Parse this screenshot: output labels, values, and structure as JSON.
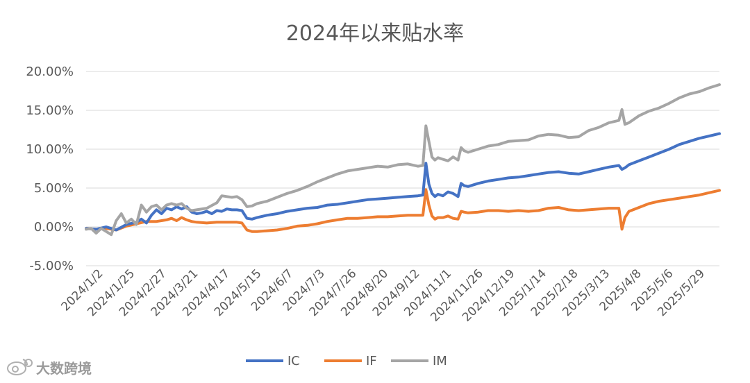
{
  "chart_data": {
    "type": "line",
    "title": "2024年以来贴水率",
    "xlabel": "",
    "ylabel": "",
    "ylim": [
      -5,
      20
    ],
    "y_ticks": [
      {
        "value": 20,
        "label": "20.00%"
      },
      {
        "value": 15,
        "label": "15.00%"
      },
      {
        "value": 10,
        "label": "10.00%"
      },
      {
        "value": 5,
        "label": "5.00%"
      },
      {
        "value": 0,
        "label": "0.00%"
      },
      {
        "value": -5,
        "label": "-5.00%"
      }
    ],
    "x_tick_labels": [
      "2024/1/2",
      "2024/1/25",
      "2024/2/27",
      "2024/3/21",
      "2024/4/17",
      "2024/5/15",
      "2024/6/7",
      "2024/7/3",
      "2024/7/26",
      "2024/8/20",
      "2024/9/12",
      "2024/11/1",
      "2024/11/26",
      "2024/12/19",
      "2025/1/14",
      "2025/2/18",
      "2025/3/13",
      "2025/4/8",
      "2025/5/6",
      "2025/5/29"
    ],
    "grid": "horizontal",
    "legend": "bottom",
    "series": [
      {
        "name": "IC",
        "color": "#4472C4",
        "points": [
          [
            0,
            -0.2
          ],
          [
            2,
            -0.3
          ],
          [
            4,
            0.0
          ],
          [
            6,
            -0.4
          ],
          [
            8,
            0.3
          ],
          [
            10,
            0.6
          ],
          [
            11,
            1.0
          ],
          [
            12,
            0.5
          ],
          [
            13,
            1.5
          ],
          [
            14,
            2.2
          ],
          [
            15,
            1.7
          ],
          [
            16,
            2.4
          ],
          [
            17,
            2.2
          ],
          [
            18,
            2.6
          ],
          [
            19,
            2.3
          ],
          [
            20,
            2.6
          ],
          [
            21,
            1.9
          ],
          [
            22,
            1.7
          ],
          [
            23,
            1.8
          ],
          [
            24,
            2.0
          ],
          [
            25,
            1.7
          ],
          [
            26,
            2.1
          ],
          [
            27,
            2.0
          ],
          [
            28,
            2.3
          ],
          [
            29,
            2.2
          ],
          [
            30,
            2.2
          ],
          [
            31,
            2.1
          ],
          [
            32,
            1.1
          ],
          [
            33,
            1.0
          ],
          [
            34,
            1.2
          ],
          [
            36,
            1.5
          ],
          [
            38,
            1.7
          ],
          [
            40,
            2.0
          ],
          [
            42,
            2.2
          ],
          [
            44,
            2.4
          ],
          [
            46,
            2.5
          ],
          [
            48,
            2.8
          ],
          [
            50,
            2.9
          ],
          [
            52,
            3.1
          ],
          [
            54,
            3.3
          ],
          [
            56,
            3.5
          ],
          [
            58,
            3.6
          ],
          [
            60,
            3.7
          ],
          [
            62,
            3.8
          ],
          [
            64,
            3.9
          ],
          [
            66,
            4.0
          ],
          [
            67,
            4.1
          ],
          [
            67.6,
            8.2
          ],
          [
            68.2,
            5.5
          ],
          [
            68.8,
            4.3
          ],
          [
            69.4,
            3.9
          ],
          [
            70,
            4.2
          ],
          [
            71,
            4.0
          ],
          [
            72,
            4.5
          ],
          [
            73,
            4.3
          ],
          [
            74,
            3.9
          ],
          [
            74.6,
            5.6
          ],
          [
            75.2,
            5.3
          ],
          [
            76,
            5.2
          ],
          [
            78,
            5.6
          ],
          [
            80,
            5.9
          ],
          [
            82,
            6.1
          ],
          [
            84,
            6.3
          ],
          [
            86,
            6.4
          ],
          [
            88,
            6.6
          ],
          [
            90,
            6.8
          ],
          [
            92,
            7.0
          ],
          [
            94,
            7.1
          ],
          [
            96,
            6.9
          ],
          [
            98,
            6.8
          ],
          [
            100,
            7.1
          ],
          [
            102,
            7.4
          ],
          [
            104,
            7.7
          ],
          [
            106,
            7.9
          ],
          [
            106.6,
            7.4
          ],
          [
            107.2,
            7.6
          ],
          [
            108,
            8.0
          ],
          [
            110,
            8.5
          ],
          [
            112,
            9.0
          ],
          [
            114,
            9.5
          ],
          [
            116,
            10.0
          ],
          [
            118,
            10.6
          ],
          [
            120,
            11.0
          ],
          [
            122,
            11.4
          ],
          [
            124,
            11.7
          ],
          [
            126,
            12.0
          ]
        ]
      },
      {
        "name": "IF",
        "color": "#ED7D31",
        "points": [
          [
            0,
            -0.2
          ],
          [
            2,
            -0.3
          ],
          [
            4,
            -0.2
          ],
          [
            6,
            -0.4
          ],
          [
            8,
            0.1
          ],
          [
            10,
            0.4
          ],
          [
            12,
            0.7
          ],
          [
            14,
            0.7
          ],
          [
            16,
            0.9
          ],
          [
            17,
            1.1
          ],
          [
            18,
            0.8
          ],
          [
            19,
            1.2
          ],
          [
            20,
            0.9
          ],
          [
            21,
            0.7
          ],
          [
            22,
            0.6
          ],
          [
            24,
            0.5
          ],
          [
            26,
            0.6
          ],
          [
            28,
            0.6
          ],
          [
            30,
            0.6
          ],
          [
            31,
            0.5
          ],
          [
            32,
            -0.4
          ],
          [
            33,
            -0.6
          ],
          [
            34,
            -0.6
          ],
          [
            36,
            -0.5
          ],
          [
            38,
            -0.4
          ],
          [
            40,
            -0.2
          ],
          [
            42,
            0.1
          ],
          [
            44,
            0.2
          ],
          [
            46,
            0.4
          ],
          [
            48,
            0.7
          ],
          [
            50,
            0.9
          ],
          [
            52,
            1.1
          ],
          [
            54,
            1.1
          ],
          [
            56,
            1.2
          ],
          [
            58,
            1.3
          ],
          [
            60,
            1.3
          ],
          [
            62,
            1.4
          ],
          [
            64,
            1.5
          ],
          [
            66,
            1.5
          ],
          [
            67,
            1.5
          ],
          [
            67.6,
            4.8
          ],
          [
            68.2,
            2.8
          ],
          [
            68.8,
            1.4
          ],
          [
            69.4,
            1.0
          ],
          [
            70,
            1.2
          ],
          [
            71,
            1.2
          ],
          [
            72,
            1.4
          ],
          [
            73,
            1.1
          ],
          [
            74,
            1.0
          ],
          [
            74.6,
            2.0
          ],
          [
            75.2,
            1.9
          ],
          [
            76,
            1.8
          ],
          [
            78,
            1.9
          ],
          [
            80,
            2.1
          ],
          [
            82,
            2.1
          ],
          [
            84,
            2.0
          ],
          [
            86,
            2.1
          ],
          [
            88,
            2.0
          ],
          [
            90,
            2.1
          ],
          [
            92,
            2.4
          ],
          [
            94,
            2.5
          ],
          [
            96,
            2.2
          ],
          [
            98,
            2.1
          ],
          [
            100,
            2.2
          ],
          [
            102,
            2.3
          ],
          [
            104,
            2.4
          ],
          [
            106,
            2.4
          ],
          [
            106.6,
            -0.3
          ],
          [
            107.2,
            1.2
          ],
          [
            108,
            2.0
          ],
          [
            110,
            2.5
          ],
          [
            112,
            3.0
          ],
          [
            114,
            3.3
          ],
          [
            116,
            3.5
          ],
          [
            118,
            3.7
          ],
          [
            120,
            3.9
          ],
          [
            122,
            4.1
          ],
          [
            124,
            4.4
          ],
          [
            126,
            4.7
          ]
        ]
      },
      {
        "name": "IM",
        "color": "#A5A5A5",
        "points": [
          [
            0,
            -0.3
          ],
          [
            1,
            -0.2
          ],
          [
            2,
            -0.8
          ],
          [
            3,
            -0.2
          ],
          [
            4,
            -0.6
          ],
          [
            5,
            -1.0
          ],
          [
            6,
            0.8
          ],
          [
            7,
            1.7
          ],
          [
            8,
            0.5
          ],
          [
            9,
            1.0
          ],
          [
            10,
            0.3
          ],
          [
            11,
            2.8
          ],
          [
            12,
            1.9
          ],
          [
            13,
            2.6
          ],
          [
            14,
            2.8
          ],
          [
            15,
            2.2
          ],
          [
            16,
            2.8
          ],
          [
            17,
            3.0
          ],
          [
            18,
            2.8
          ],
          [
            19,
            3.0
          ],
          [
            20,
            2.4
          ],
          [
            21,
            2.1
          ],
          [
            22,
            2.2
          ],
          [
            24,
            2.4
          ],
          [
            26,
            3.1
          ],
          [
            27,
            4.0
          ],
          [
            28,
            3.9
          ],
          [
            29,
            3.8
          ],
          [
            30,
            3.9
          ],
          [
            31,
            3.5
          ],
          [
            32,
            2.6
          ],
          [
            33,
            2.7
          ],
          [
            34,
            3.0
          ],
          [
            36,
            3.3
          ],
          [
            38,
            3.8
          ],
          [
            40,
            4.3
          ],
          [
            42,
            4.7
          ],
          [
            44,
            5.2
          ],
          [
            46,
            5.8
          ],
          [
            48,
            6.3
          ],
          [
            50,
            6.8
          ],
          [
            52,
            7.2
          ],
          [
            54,
            7.4
          ],
          [
            56,
            7.6
          ],
          [
            58,
            7.8
          ],
          [
            60,
            7.7
          ],
          [
            62,
            8.0
          ],
          [
            64,
            8.1
          ],
          [
            66,
            7.8
          ],
          [
            67,
            7.9
          ],
          [
            67.6,
            13.0
          ],
          [
            68.2,
            11.0
          ],
          [
            68.8,
            9.0
          ],
          [
            69.4,
            8.6
          ],
          [
            70,
            8.9
          ],
          [
            71,
            8.7
          ],
          [
            72,
            8.5
          ],
          [
            73,
            9.0
          ],
          [
            74,
            8.6
          ],
          [
            74.6,
            10.2
          ],
          [
            75.2,
            9.8
          ],
          [
            76,
            9.6
          ],
          [
            78,
            10.0
          ],
          [
            80,
            10.4
          ],
          [
            82,
            10.6
          ],
          [
            84,
            11.0
          ],
          [
            86,
            11.1
          ],
          [
            88,
            11.2
          ],
          [
            90,
            11.7
          ],
          [
            92,
            11.9
          ],
          [
            94,
            11.8
          ],
          [
            96,
            11.5
          ],
          [
            98,
            11.6
          ],
          [
            100,
            12.4
          ],
          [
            102,
            12.8
          ],
          [
            104,
            13.4
          ],
          [
            106,
            13.7
          ],
          [
            106.6,
            15.1
          ],
          [
            107.2,
            13.2
          ],
          [
            108,
            13.4
          ],
          [
            110,
            14.3
          ],
          [
            112,
            14.9
          ],
          [
            114,
            15.3
          ],
          [
            116,
            15.9
          ],
          [
            118,
            16.6
          ],
          [
            120,
            17.1
          ],
          [
            122,
            17.4
          ],
          [
            124,
            17.9
          ],
          [
            126,
            18.3
          ]
        ]
      }
    ]
  },
  "watermark": {
    "logo_icon": "weibo-icon",
    "text": "大数跨境"
  }
}
